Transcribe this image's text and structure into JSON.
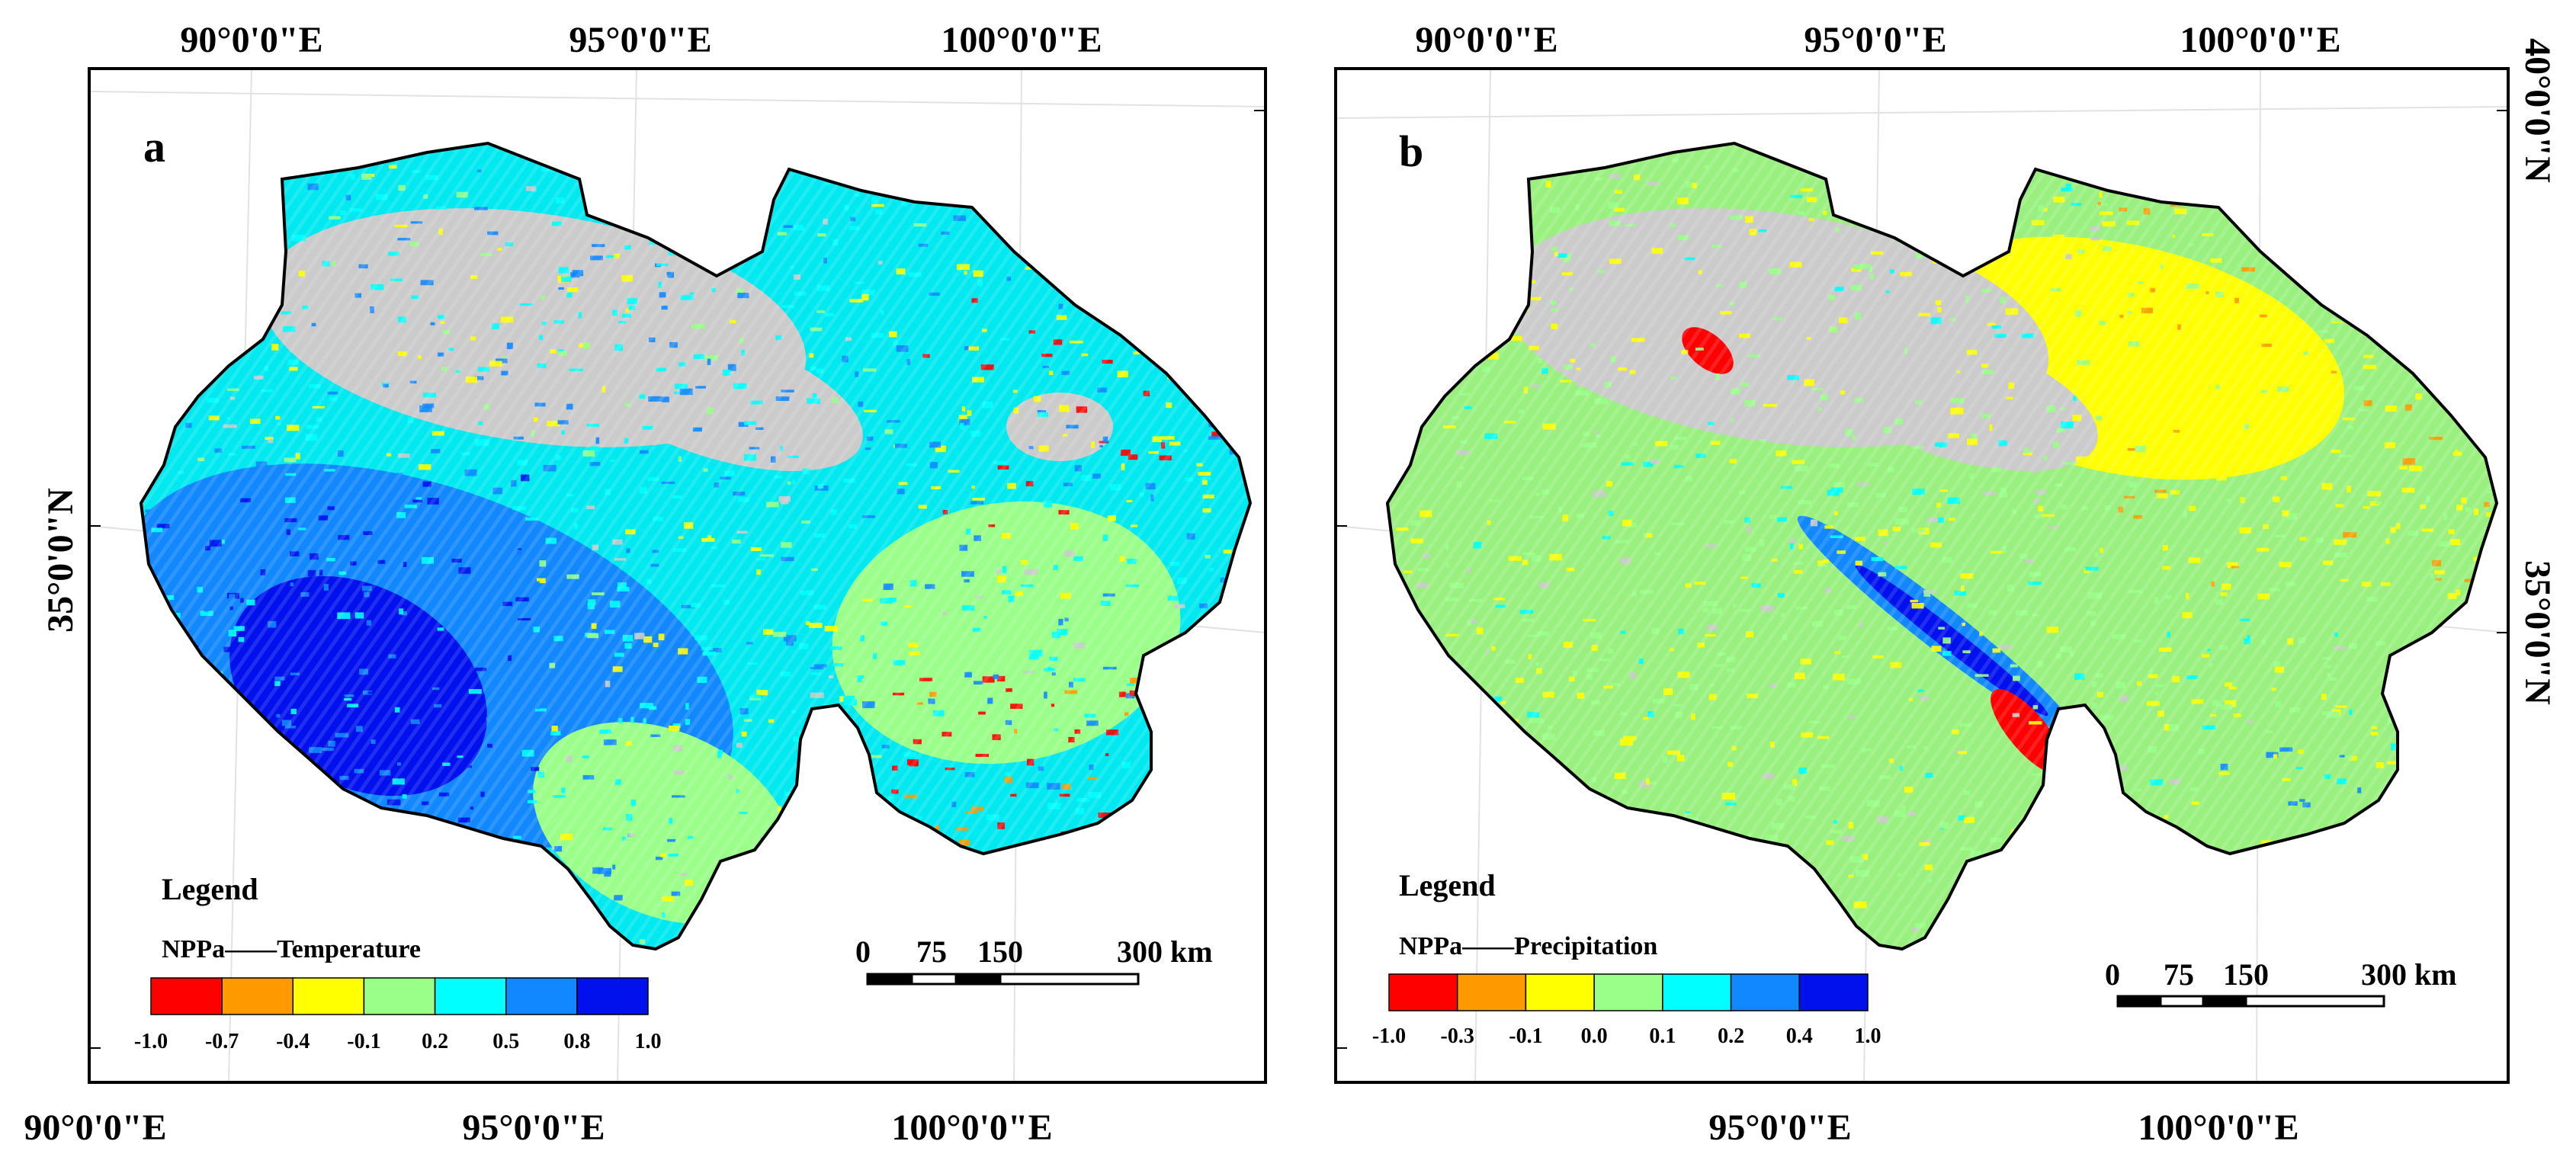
{
  "panels": [
    {
      "letter": "a",
      "top_lons": [
        "90°0'0\"E",
        "95°0'0\"E",
        "100°0'0\"E"
      ],
      "bottom_lons": [
        "90°0'0\"E",
        "95°0'0\"E",
        "100°0'0\"E"
      ],
      "left_lat": "35°0'0\"N",
      "legend": {
        "title": "Legend",
        "subtitle": "NPPa——Temperature",
        "colors": [
          "#ff0000",
          "#ff9900",
          "#ffff00",
          "#99ff88",
          "#00ffff",
          "#1188ff",
          "#0011ee"
        ],
        "ticks": [
          "-1.0",
          "-0.7",
          "-0.4",
          "-0.1",
          "0.2",
          "0.5",
          "0.8",
          "1.0"
        ]
      },
      "scale_bar": {
        "labels": [
          "0",
          "75",
          "150",
          "300"
        ],
        "unit": "km"
      }
    },
    {
      "letter": "b",
      "top_lons": [
        "90°0'0\"E",
        "95°0'0\"E",
        "100°0'0\"E"
      ],
      "bottom_lons": [
        "95°0'0\"E",
        "100°0'0\"E"
      ],
      "right_lats": [
        "40°0'0\"N",
        "35°0'0\"N"
      ],
      "legend": {
        "title": "Legend",
        "subtitle": "NPPa——Precipitation",
        "colors": [
          "#ff0000",
          "#ff9900",
          "#ffff00",
          "#99ff88",
          "#00ffff",
          "#1188ff",
          "#0011ee"
        ],
        "ticks": [
          "-1.0",
          "-0.3",
          "-0.1",
          "0.0",
          "0.1",
          "0.2",
          "0.4",
          "1.0"
        ]
      },
      "scale_bar": {
        "labels": [
          "0",
          "75",
          "150",
          "300"
        ],
        "unit": "km"
      }
    }
  ]
}
